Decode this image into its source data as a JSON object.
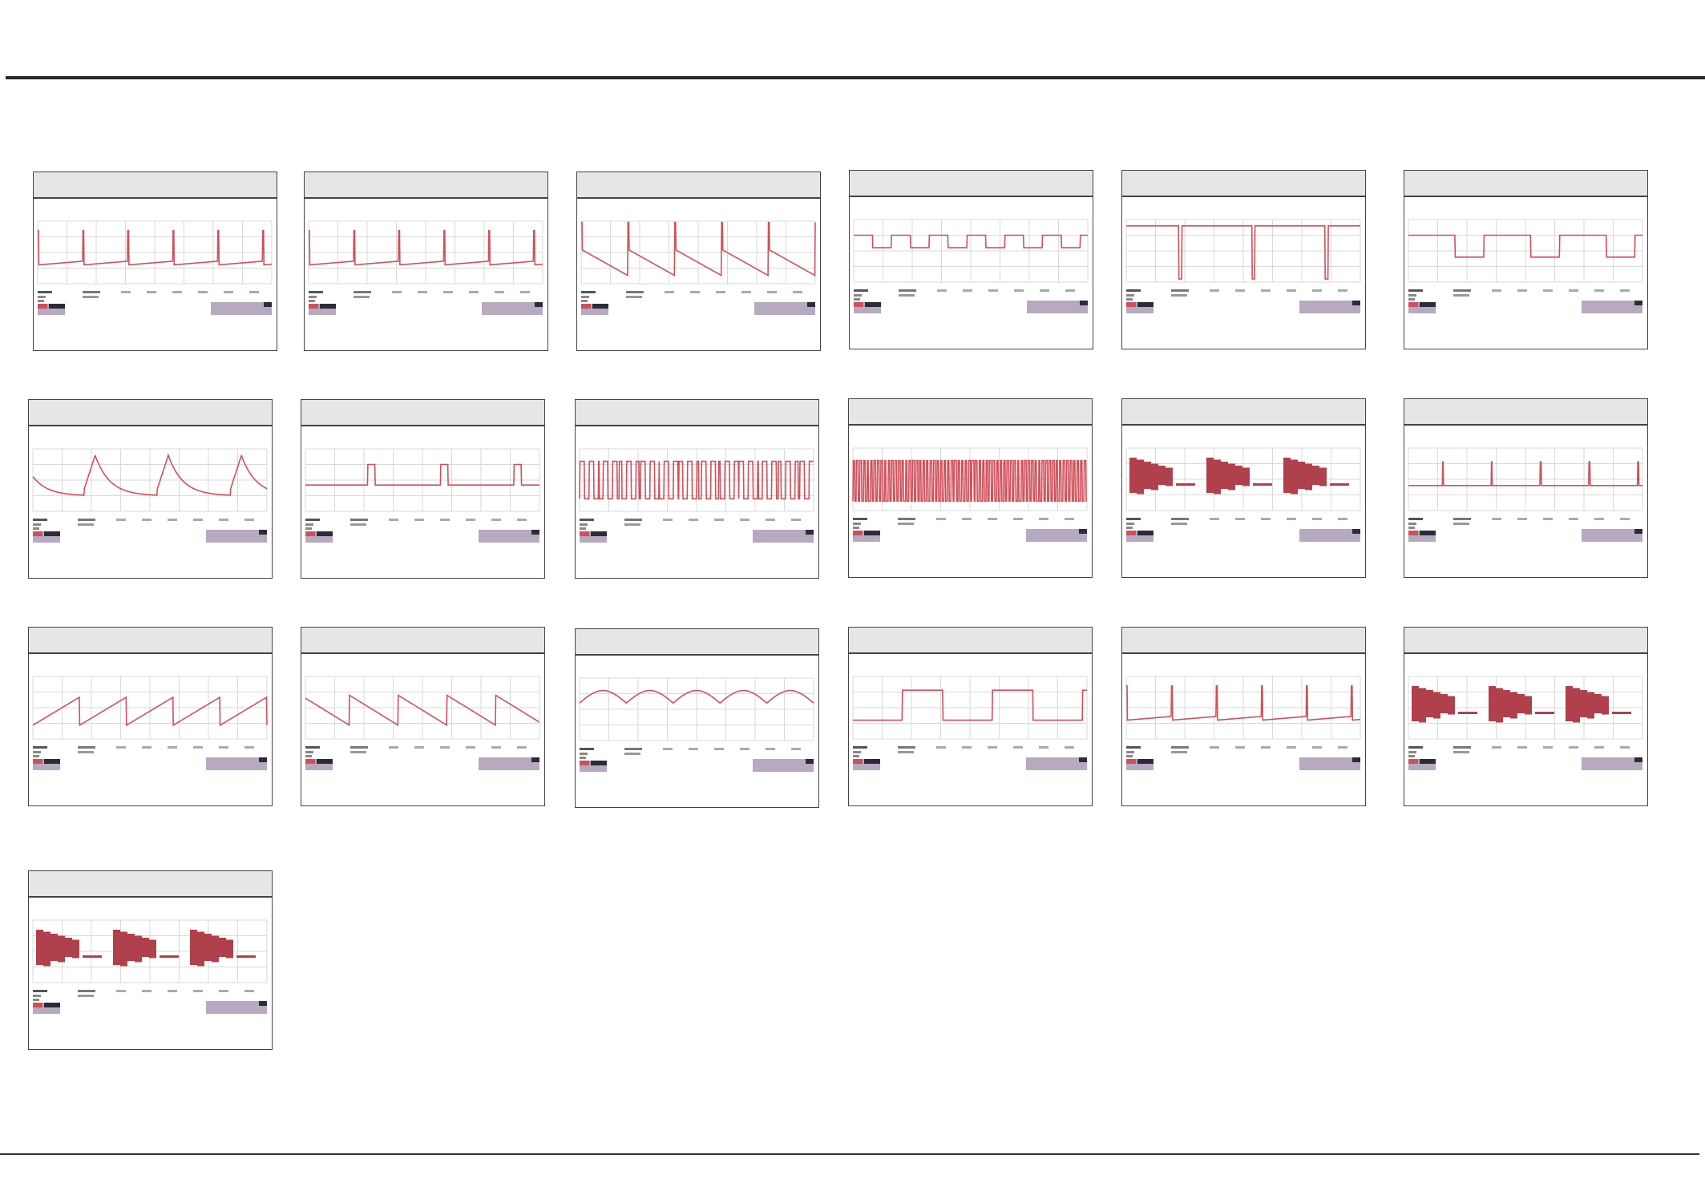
{
  "accent": "#d0505a",
  "readout_fill": "#b7a9bf",
  "readout_dark": "#2b2b3a",
  "panels": [
    {
      "wave": "pulse-narrow"
    },
    {
      "wave": "pulse-narrow"
    },
    {
      "wave": "sawtooth-spike"
    },
    {
      "wave": "square"
    },
    {
      "wave": "high-dips"
    },
    {
      "wave": "square-wide"
    },
    {
      "wave": "exp-peak"
    },
    {
      "wave": "pulse-wide"
    },
    {
      "wave": "digital-burst"
    },
    {
      "wave": "digital-dense"
    },
    {
      "wave": "burst-blocks"
    },
    {
      "wave": "spikes"
    },
    {
      "wave": "ramp-up"
    },
    {
      "wave": "ramp-down"
    },
    {
      "wave": "arches"
    },
    {
      "wave": "square-low"
    },
    {
      "wave": "pulse-narrow"
    },
    {
      "wave": "burst-blocks"
    },
    {
      "wave": "burst-blocks"
    }
  ]
}
